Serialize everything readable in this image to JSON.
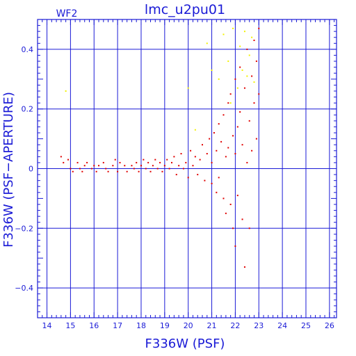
{
  "chart_data": {
    "type": "scatter",
    "title": "lmc_u2pu01",
    "panel_label": "WF2",
    "xlabel": "F336W (PSF)",
    "ylabel": "F336W (PSF−APERTURE)",
    "xlim": [
      13.6,
      26.3
    ],
    "ylim": [
      -0.5,
      0.5
    ],
    "x_major_ticks": [
      14,
      15,
      16,
      17,
      18,
      19,
      20,
      21,
      22,
      23,
      24,
      25,
      26
    ],
    "y_major_ticks": [
      -0.4,
      -0.2,
      0,
      0.2,
      0.4
    ],
    "x_tick_labels": [
      "14",
      "15",
      "16",
      "17",
      "18",
      "19",
      "20",
      "21",
      "22",
      "23",
      "24",
      "25",
      "26"
    ],
    "y_tick_labels": [
      "−0.4",
      "−0.2",
      "0",
      "0.2",
      "0.4"
    ],
    "grid": true,
    "colors": {
      "axis": "#1a1ad6",
      "grid": "#1a1ad6",
      "series_main": "#e00000",
      "series_faint": "#f2f200"
    },
    "series": [
      {
        "color": "#e00000",
        "points": [
          [
            14.6,
            0.04
          ],
          [
            14.7,
            0.02
          ],
          [
            14.9,
            0.03
          ],
          [
            15.0,
            0.0
          ],
          [
            15.1,
            -0.01
          ],
          [
            15.3,
            0.02
          ],
          [
            15.4,
            0.0
          ],
          [
            15.5,
            -0.01
          ],
          [
            15.6,
            0.01
          ],
          [
            15.7,
            0.02
          ],
          [
            15.9,
            0.0
          ],
          [
            16.0,
            0.01
          ],
          [
            16.1,
            -0.01
          ],
          [
            16.2,
            0.01
          ],
          [
            16.4,
            0.02
          ],
          [
            16.5,
            0.0
          ],
          [
            16.6,
            -0.01
          ],
          [
            16.8,
            0.01
          ],
          [
            16.9,
            0.03
          ],
          [
            17.0,
            -0.01
          ],
          [
            17.1,
            0.02
          ],
          [
            17.3,
            0.01
          ],
          [
            17.4,
            -0.01
          ],
          [
            17.6,
            0.01
          ],
          [
            17.7,
            0.0
          ],
          [
            17.8,
            0.02
          ],
          [
            17.9,
            -0.01
          ],
          [
            18.0,
            0.01
          ],
          [
            18.1,
            0.03
          ],
          [
            18.2,
            0.0
          ],
          [
            18.3,
            0.02
          ],
          [
            18.4,
            -0.01
          ],
          [
            18.5,
            0.01
          ],
          [
            18.6,
            0.03
          ],
          [
            18.7,
            0.0
          ],
          [
            18.8,
            0.02
          ],
          [
            18.9,
            -0.01
          ],
          [
            19.0,
            0.01
          ],
          [
            19.1,
            0.03
          ],
          [
            19.2,
            0.0
          ],
          [
            19.3,
            0.02
          ],
          [
            19.4,
            0.04
          ],
          [
            19.5,
            -0.02
          ],
          [
            19.6,
            0.01
          ],
          [
            19.7,
            0.05
          ],
          [
            19.8,
            0.0
          ],
          [
            19.9,
            0.02
          ],
          [
            20.0,
            -0.03
          ],
          [
            20.1,
            0.06
          ],
          [
            20.2,
            0.01
          ],
          [
            20.3,
            0.04
          ],
          [
            20.4,
            -0.02
          ],
          [
            20.5,
            0.03
          ],
          [
            20.6,
            0.08
          ],
          [
            20.7,
            -0.04
          ],
          [
            20.8,
            0.05
          ],
          [
            20.9,
            0.1
          ],
          [
            21.0,
            -0.05
          ],
          [
            21.0,
            0.02
          ],
          [
            21.1,
            0.12
          ],
          [
            21.2,
            -0.08
          ],
          [
            21.2,
            0.06
          ],
          [
            21.3,
            0.15
          ],
          [
            21.3,
            -0.03
          ],
          [
            21.4,
            0.09
          ],
          [
            21.5,
            -0.1
          ],
          [
            21.5,
            0.18
          ],
          [
            21.6,
            0.04
          ],
          [
            21.6,
            -0.15
          ],
          [
            21.7,
            0.22
          ],
          [
            21.7,
            0.07
          ],
          [
            21.8,
            -0.12
          ],
          [
            21.8,
            0.25
          ],
          [
            21.9,
            0.11
          ],
          [
            21.9,
            -0.2
          ],
          [
            22.0,
            0.3
          ],
          [
            22.0,
            0.05
          ],
          [
            22.0,
            -0.26
          ],
          [
            22.1,
            0.14
          ],
          [
            22.1,
            -0.09
          ],
          [
            22.2,
            0.34
          ],
          [
            22.2,
            0.19
          ],
          [
            22.3,
            -0.17
          ],
          [
            22.3,
            0.08
          ],
          [
            22.4,
            0.27
          ],
          [
            22.4,
            -0.33
          ],
          [
            22.5,
            0.4
          ],
          [
            22.5,
            0.02
          ],
          [
            22.6,
            0.16
          ],
          [
            22.6,
            -0.2
          ],
          [
            22.7,
            0.31
          ],
          [
            22.7,
            0.06
          ],
          [
            22.8,
            0.22
          ],
          [
            22.8,
            0.43
          ],
          [
            22.9,
            0.1
          ],
          [
            22.9,
            0.36
          ],
          [
            23.0,
            0.47
          ],
          [
            23.0,
            0.25
          ]
        ]
      },
      {
        "color": "#f2f200",
        "points": [
          [
            14.8,
            0.26
          ],
          [
            20.0,
            0.27
          ],
          [
            20.3,
            0.13
          ],
          [
            20.8,
            0.42
          ],
          [
            21.0,
            0.33
          ],
          [
            21.3,
            0.3
          ],
          [
            21.5,
            0.45
          ],
          [
            21.7,
            0.36
          ],
          [
            21.8,
            0.22
          ],
          [
            21.9,
            0.47
          ],
          [
            22.1,
            0.27
          ],
          [
            22.2,
            0.41
          ],
          [
            22.3,
            0.33
          ],
          [
            22.4,
            0.46
          ],
          [
            22.5,
            0.31
          ],
          [
            22.6,
            0.38
          ],
          [
            22.7,
            0.44
          ],
          [
            22.8,
            0.29
          ]
        ]
      }
    ]
  }
}
